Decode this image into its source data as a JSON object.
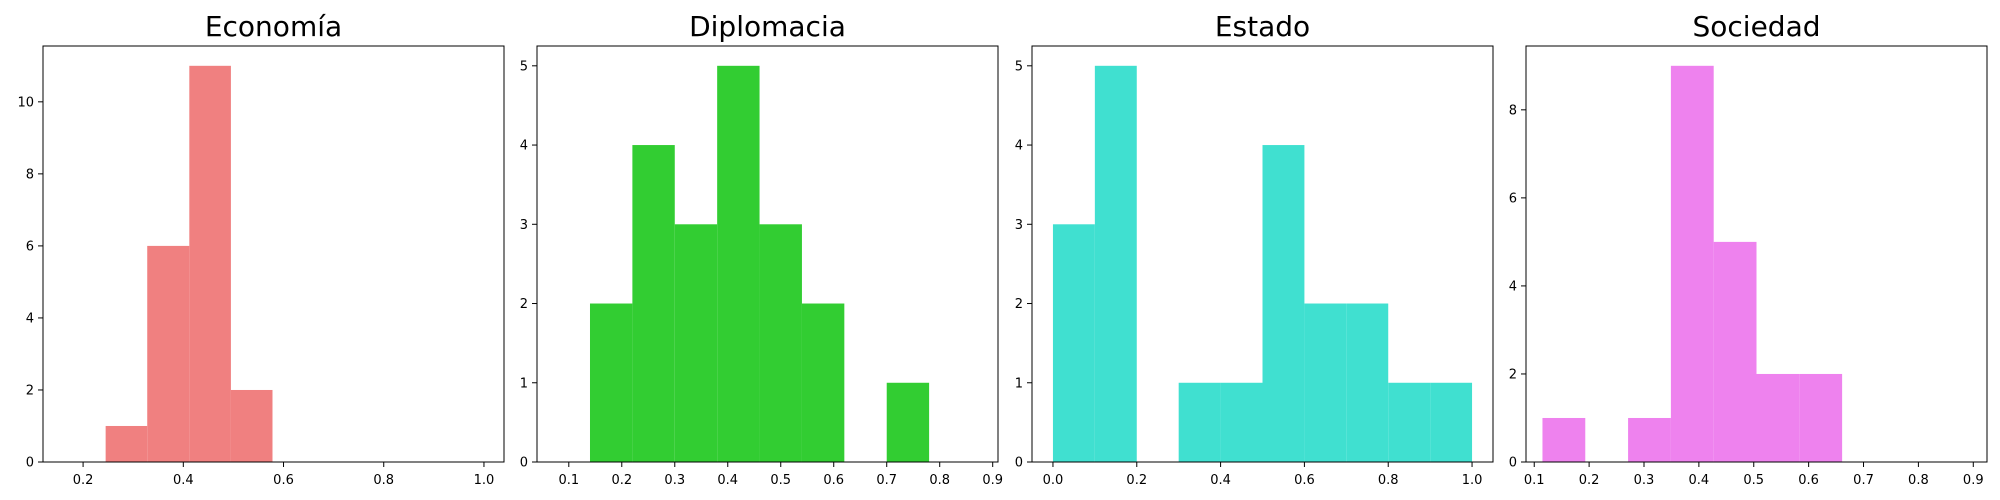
{
  "chart_data": [
    {
      "type": "bar",
      "title": "Economía",
      "color": "#f08080",
      "xlim": [
        0.12,
        1.04
      ],
      "ylim": [
        0,
        11.55
      ],
      "xticks": [
        0.2,
        0.4,
        0.6,
        0.8,
        1.0
      ],
      "xtick_labels": [
        "0.2",
        "0.4",
        "0.6",
        "0.8",
        "1.0"
      ],
      "yticks": [
        0,
        2,
        4,
        6,
        8,
        10
      ],
      "ytick_labels": [
        "0",
        "2",
        "4",
        "6",
        "8",
        "10"
      ],
      "bins": [
        {
          "x0": 0.245,
          "x1": 0.328,
          "count": 1
        },
        {
          "x0": 0.328,
          "x1": 0.412,
          "count": 6
        },
        {
          "x0": 0.412,
          "x1": 0.495,
          "count": 11
        },
        {
          "x0": 0.495,
          "x1": 0.578,
          "count": 2
        }
      ]
    },
    {
      "type": "bar",
      "title": "Diplomacia",
      "color": "#32cd32",
      "xlim": [
        0.04,
        0.91
      ],
      "ylim": [
        0,
        5.25
      ],
      "xticks": [
        0.1,
        0.2,
        0.3,
        0.4,
        0.5,
        0.6,
        0.7,
        0.8,
        0.9
      ],
      "xtick_labels": [
        "0.1",
        "0.2",
        "0.3",
        "0.4",
        "0.5",
        "0.6",
        "0.7",
        "0.8",
        "0.9"
      ],
      "yticks": [
        0,
        1,
        2,
        3,
        4,
        5
      ],
      "ytick_labels": [
        "0",
        "1",
        "2",
        "3",
        "4",
        "5"
      ],
      "bins": [
        {
          "x0": 0.14,
          "x1": 0.22,
          "count": 2
        },
        {
          "x0": 0.22,
          "x1": 0.3,
          "count": 4
        },
        {
          "x0": 0.3,
          "x1": 0.38,
          "count": 3
        },
        {
          "x0": 0.38,
          "x1": 0.46,
          "count": 5
        },
        {
          "x0": 0.46,
          "x1": 0.54,
          "count": 3
        },
        {
          "x0": 0.54,
          "x1": 0.62,
          "count": 2
        },
        {
          "x0": 0.7,
          "x1": 0.78,
          "count": 1
        }
      ]
    },
    {
      "type": "bar",
      "title": "Estado",
      "color": "#40e0d0",
      "xlim": [
        -0.05,
        1.05
      ],
      "ylim": [
        0,
        5.25
      ],
      "xticks": [
        0.0,
        0.2,
        0.4,
        0.6,
        0.8,
        1.0
      ],
      "xtick_labels": [
        "0.0",
        "0.2",
        "0.4",
        "0.6",
        "0.8",
        "1.0"
      ],
      "yticks": [
        0,
        1,
        2,
        3,
        4,
        5
      ],
      "ytick_labels": [
        "0",
        "1",
        "2",
        "3",
        "4",
        "5"
      ],
      "bins": [
        {
          "x0": 0.0,
          "x1": 0.1,
          "count": 3
        },
        {
          "x0": 0.1,
          "x1": 0.2,
          "count": 5
        },
        {
          "x0": 0.3,
          "x1": 0.4,
          "count": 1
        },
        {
          "x0": 0.4,
          "x1": 0.5,
          "count": 1
        },
        {
          "x0": 0.5,
          "x1": 0.6,
          "count": 4
        },
        {
          "x0": 0.6,
          "x1": 0.7,
          "count": 2
        },
        {
          "x0": 0.7,
          "x1": 0.8,
          "count": 2
        },
        {
          "x0": 0.8,
          "x1": 0.9,
          "count": 1
        },
        {
          "x0": 0.9,
          "x1": 1.0,
          "count": 1
        }
      ]
    },
    {
      "type": "bar",
      "title": "Sociedad",
      "color": "#ee82ee",
      "xlim": [
        0.085,
        0.925
      ],
      "ylim": [
        0,
        9.45
      ],
      "xticks": [
        0.1,
        0.2,
        0.3,
        0.4,
        0.5,
        0.6,
        0.7,
        0.8,
        0.9
      ],
      "xtick_labels": [
        "0.1",
        "0.2",
        "0.3",
        "0.4",
        "0.5",
        "0.6",
        "0.7",
        "0.8",
        "0.9"
      ],
      "yticks": [
        0,
        2,
        4,
        6,
        8
      ],
      "ytick_labels": [
        "0",
        "2",
        "4",
        "6",
        "8"
      ],
      "bins": [
        {
          "x0": 0.115,
          "x1": 0.193,
          "count": 1
        },
        {
          "x0": 0.271,
          "x1": 0.349,
          "count": 1
        },
        {
          "x0": 0.349,
          "x1": 0.427,
          "count": 9
        },
        {
          "x0": 0.427,
          "x1": 0.505,
          "count": 5
        },
        {
          "x0": 0.505,
          "x1": 0.583,
          "count": 2
        },
        {
          "x0": 0.583,
          "x1": 0.661,
          "count": 2
        }
      ]
    }
  ]
}
